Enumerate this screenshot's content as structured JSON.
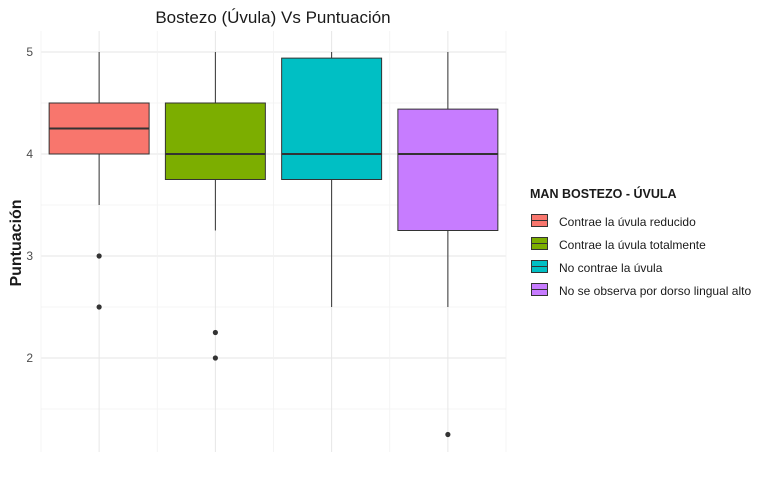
{
  "chart_data": {
    "type": "boxplot",
    "title": "Bostezo (Úvula) Vs Puntuación",
    "xlabel": "",
    "ylabel": "Puntuación",
    "ylim": [
      1.0,
      5.2
    ],
    "yticks": [
      2,
      3,
      4,
      5
    ],
    "grid": true,
    "legend": {
      "title": "MAN BOSTEZO - ÚVULA",
      "placement": "right"
    },
    "series": [
      {
        "name": "Contrae la úvula reducido",
        "color": "#F8766D",
        "min": 3.5,
        "q1": 4.0,
        "median": 4.25,
        "q3": 4.5,
        "max": 5.0,
        "outliers": [
          3.0,
          2.5
        ]
      },
      {
        "name": "Contrae la úvula totalmente",
        "color": "#7CAE00",
        "min": 3.25,
        "q1": 3.75,
        "median": 4.0,
        "q3": 4.5,
        "max": 5.0,
        "outliers": [
          2.25,
          2.0
        ]
      },
      {
        "name": "No contrae la úvula",
        "color": "#00BFC4",
        "min": 2.5,
        "q1": 3.75,
        "median": 4.0,
        "q3": 4.94,
        "max": 5.0,
        "outliers": []
      },
      {
        "name": "No se observa por dorso lingual alto",
        "color": "#C77CFF",
        "min": 2.5,
        "q1": 3.25,
        "median": 4.0,
        "q3": 4.44,
        "max": 5.0,
        "outliers": [
          1.25
        ]
      }
    ]
  }
}
